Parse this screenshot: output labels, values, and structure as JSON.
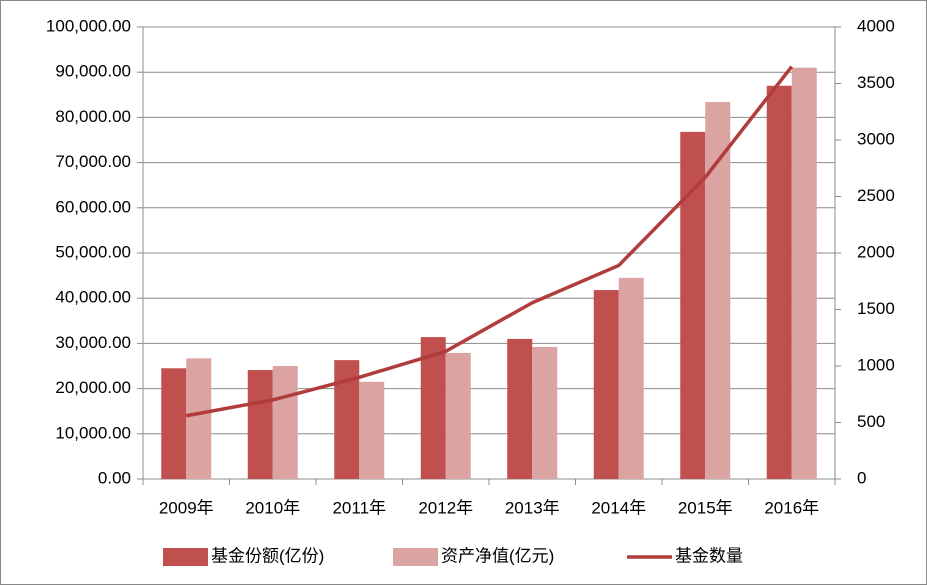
{
  "chart_data": {
    "type": "bar",
    "categories": [
      "2009年",
      "2010年",
      "2011年",
      "2012年",
      "2013年",
      "2014年",
      "2015年",
      "2016年"
    ],
    "series": [
      {
        "name": "基金份额(亿份)",
        "color": "#c0504d",
        "values": [
          24500,
          24100,
          26300,
          31400,
          31000,
          41800,
          76800,
          87000
        ]
      },
      {
        "name": "资产净值(亿元)",
        "color": "#dba3a2",
        "values": [
          26700,
          25000,
          21500,
          27900,
          29200,
          44500,
          83400,
          91000
        ]
      },
      {
        "name": "基金数量",
        "color": "#b03c3c",
        "type": "line",
        "axis": "y2",
        "values": [
          560,
          700,
          900,
          1130,
          1560,
          1890,
          2670,
          3650
        ]
      }
    ],
    "ylim": [
      0,
      100000
    ],
    "yticks": [
      {
        "value": 0,
        "label": "0.00"
      },
      {
        "value": 10000,
        "label": "10,000.00"
      },
      {
        "value": 20000,
        "label": "20,000.00"
      },
      {
        "value": 30000,
        "label": "30,000.00"
      },
      {
        "value": 40000,
        "label": "40,000.00"
      },
      {
        "value": 50000,
        "label": "50,000.00"
      },
      {
        "value": 60000,
        "label": "60,000.00"
      },
      {
        "value": 70000,
        "label": "70,000.00"
      },
      {
        "value": 80000,
        "label": "80,000.00"
      },
      {
        "value": 90000,
        "label": "90,000.00"
      },
      {
        "value": 100000,
        "label": "100,000.00"
      }
    ],
    "y2lim": [
      0,
      4000
    ],
    "y2ticks": [
      0,
      500,
      1000,
      1500,
      2000,
      2500,
      3000,
      3500,
      4000
    ],
    "grid": true,
    "legend": "bottom"
  }
}
